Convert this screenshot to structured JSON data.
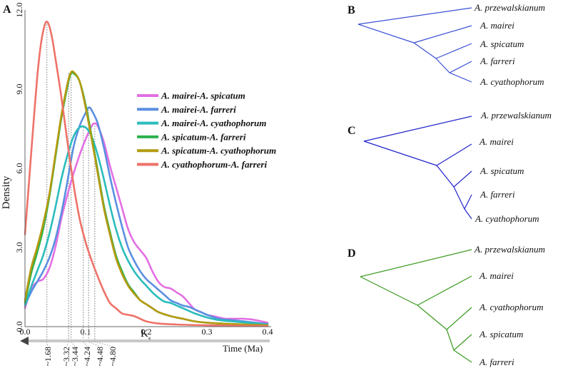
{
  "chart_data": {
    "type": "line",
    "panel_label": "A",
    "ylabel": "Density",
    "xlabel": "K",
    "xlabel_sub": "s",
    "secondary_axis_label": "Time (Ma)",
    "xlim": [
      0.0,
      0.4
    ],
    "ylim": [
      0.0,
      12.0
    ],
    "x_ticks": [
      {
        "v": 0.0,
        "t": "0.0"
      },
      {
        "v": 0.1,
        "t": "0.1"
      },
      {
        "v": 0.2,
        "t": "0.2"
      },
      {
        "v": 0.3,
        "t": "0.3"
      },
      {
        "v": 0.4,
        "t": "0.4"
      }
    ],
    "y_ticks": [
      {
        "v": 0.0,
        "t": "0.0"
      },
      {
        "v": 3.0,
        "t": "3.0"
      },
      {
        "v": 6.0,
        "t": "6.0"
      },
      {
        "v": 9.0,
        "t": "9.0"
      },
      {
        "v": 12.0,
        "t": "12.0"
      }
    ],
    "legend_position": "right",
    "series": [
      {
        "name": "A. mairei-A. spicatum",
        "color": "#e36fe3",
        "points": [
          [
            0,
            0.7
          ],
          [
            0.01,
            1.4
          ],
          [
            0.02,
            1.7
          ],
          [
            0.03,
            1.8
          ],
          [
            0.04,
            2.2
          ],
          [
            0.05,
            3.0
          ],
          [
            0.06,
            4.1
          ],
          [
            0.07,
            5.0
          ],
          [
            0.08,
            5.8
          ],
          [
            0.09,
            6.5
          ],
          [
            0.1,
            7.1
          ],
          [
            0.11,
            7.6
          ],
          [
            0.115,
            7.7
          ],
          [
            0.12,
            7.6
          ],
          [
            0.13,
            7.0
          ],
          [
            0.14,
            6.1
          ],
          [
            0.15,
            5.3
          ],
          [
            0.16,
            4.5
          ],
          [
            0.17,
            3.7
          ],
          [
            0.18,
            3.2
          ],
          [
            0.19,
            2.9
          ],
          [
            0.2,
            2.6
          ],
          [
            0.21,
            2.1
          ],
          [
            0.22,
            1.7
          ],
          [
            0.23,
            1.5
          ],
          [
            0.24,
            1.45
          ],
          [
            0.25,
            1.3
          ],
          [
            0.26,
            1.15
          ],
          [
            0.27,
            0.9
          ],
          [
            0.28,
            0.65
          ],
          [
            0.29,
            0.55
          ],
          [
            0.3,
            0.45
          ],
          [
            0.31,
            0.4
          ],
          [
            0.32,
            0.35
          ],
          [
            0.33,
            0.3
          ],
          [
            0.34,
            0.3
          ],
          [
            0.35,
            0.3
          ],
          [
            0.36,
            0.3
          ],
          [
            0.37,
            0.28
          ],
          [
            0.38,
            0.25
          ],
          [
            0.39,
            0.2
          ],
          [
            0.4,
            0.15
          ]
        ]
      },
      {
        "name": "A. mairei-A. farreri",
        "color": "#5b8fe0",
        "points": [
          [
            0,
            0.8
          ],
          [
            0.01,
            1.3
          ],
          [
            0.02,
            1.7
          ],
          [
            0.03,
            2.1
          ],
          [
            0.04,
            2.6
          ],
          [
            0.05,
            3.3
          ],
          [
            0.06,
            4.3
          ],
          [
            0.07,
            5.5
          ],
          [
            0.08,
            6.8
          ],
          [
            0.09,
            7.6
          ],
          [
            0.1,
            8.1
          ],
          [
            0.105,
            8.3
          ],
          [
            0.11,
            8.2
          ],
          [
            0.12,
            7.7
          ],
          [
            0.13,
            6.8
          ],
          [
            0.14,
            5.7
          ],
          [
            0.15,
            4.7
          ],
          [
            0.16,
            3.8
          ],
          [
            0.17,
            3.0
          ],
          [
            0.18,
            2.5
          ],
          [
            0.19,
            2.1
          ],
          [
            0.2,
            1.8
          ],
          [
            0.21,
            1.6
          ],
          [
            0.22,
            1.4
          ],
          [
            0.23,
            1.2
          ],
          [
            0.24,
            1.0
          ],
          [
            0.25,
            0.9
          ],
          [
            0.26,
            0.8
          ],
          [
            0.27,
            0.75
          ],
          [
            0.28,
            0.65
          ],
          [
            0.29,
            0.55
          ],
          [
            0.3,
            0.45
          ],
          [
            0.32,
            0.3
          ],
          [
            0.34,
            0.25
          ],
          [
            0.36,
            0.2
          ],
          [
            0.38,
            0.15
          ],
          [
            0.4,
            0.1
          ]
        ]
      },
      {
        "name": "A. mairei-A. cyathophorum",
        "color": "#2bbcbc",
        "points": [
          [
            0,
            0.8
          ],
          [
            0.01,
            1.5
          ],
          [
            0.02,
            2.1
          ],
          [
            0.03,
            2.7
          ],
          [
            0.04,
            3.5
          ],
          [
            0.05,
            4.5
          ],
          [
            0.06,
            5.6
          ],
          [
            0.07,
            6.5
          ],
          [
            0.08,
            7.2
          ],
          [
            0.09,
            7.55
          ],
          [
            0.1,
            7.55
          ],
          [
            0.11,
            7.2
          ],
          [
            0.12,
            6.5
          ],
          [
            0.13,
            5.6
          ],
          [
            0.14,
            4.6
          ],
          [
            0.15,
            3.7
          ],
          [
            0.16,
            3.0
          ],
          [
            0.17,
            2.5
          ],
          [
            0.18,
            2.1
          ],
          [
            0.19,
            1.8
          ],
          [
            0.2,
            1.55
          ],
          [
            0.21,
            1.3
          ],
          [
            0.22,
            1.1
          ],
          [
            0.23,
            0.95
          ],
          [
            0.24,
            0.9
          ],
          [
            0.25,
            0.8
          ],
          [
            0.26,
            0.7
          ],
          [
            0.27,
            0.6
          ],
          [
            0.28,
            0.5
          ],
          [
            0.3,
            0.35
          ],
          [
            0.32,
            0.25
          ],
          [
            0.35,
            0.18
          ],
          [
            0.38,
            0.12
          ],
          [
            0.4,
            0.08
          ]
        ]
      },
      {
        "name": "A. spicatum-A. farreri",
        "color": "#2bb24c",
        "points": [
          [
            0,
            0.9
          ],
          [
            0.01,
            2.0
          ],
          [
            0.02,
            2.8
          ],
          [
            0.03,
            3.7
          ],
          [
            0.04,
            4.9
          ],
          [
            0.05,
            6.4
          ],
          [
            0.06,
            7.9
          ],
          [
            0.07,
            9.1
          ],
          [
            0.075,
            9.55
          ],
          [
            0.08,
            9.6
          ],
          [
            0.09,
            9.3
          ],
          [
            0.1,
            8.4
          ],
          [
            0.11,
            7.2
          ],
          [
            0.12,
            5.9
          ],
          [
            0.13,
            4.6
          ],
          [
            0.14,
            3.6
          ],
          [
            0.15,
            2.7
          ],
          [
            0.16,
            2.1
          ],
          [
            0.17,
            1.6
          ],
          [
            0.18,
            1.3
          ],
          [
            0.19,
            1.0
          ],
          [
            0.2,
            0.85
          ],
          [
            0.21,
            0.7
          ],
          [
            0.22,
            0.55
          ],
          [
            0.24,
            0.4
          ],
          [
            0.26,
            0.3
          ],
          [
            0.28,
            0.2
          ],
          [
            0.3,
            0.15
          ],
          [
            0.34,
            0.1
          ],
          [
            0.4,
            0.05
          ]
        ]
      },
      {
        "name": "A. spicatum-A. cyathophorum",
        "color": "#b49a10",
        "points": [
          [
            0,
            1.0
          ],
          [
            0.01,
            2.2
          ],
          [
            0.02,
            3.0
          ],
          [
            0.03,
            3.9
          ],
          [
            0.04,
            5.0
          ],
          [
            0.05,
            6.5
          ],
          [
            0.06,
            8.0
          ],
          [
            0.07,
            9.2
          ],
          [
            0.075,
            9.6
          ],
          [
            0.08,
            9.65
          ],
          [
            0.09,
            9.3
          ],
          [
            0.1,
            8.3
          ],
          [
            0.11,
            7.1
          ],
          [
            0.12,
            5.8
          ],
          [
            0.13,
            4.5
          ],
          [
            0.14,
            3.5
          ],
          [
            0.15,
            2.6
          ],
          [
            0.16,
            2.0
          ],
          [
            0.17,
            1.55
          ],
          [
            0.18,
            1.25
          ],
          [
            0.19,
            1.0
          ],
          [
            0.2,
            0.85
          ],
          [
            0.21,
            0.7
          ],
          [
            0.22,
            0.55
          ],
          [
            0.24,
            0.4
          ],
          [
            0.26,
            0.3
          ],
          [
            0.28,
            0.2
          ],
          [
            0.3,
            0.15
          ],
          [
            0.34,
            0.1
          ],
          [
            0.4,
            0.05
          ]
        ]
      },
      {
        "name": "A. cyathophorum-A. farreri",
        "color": "#ee7268",
        "points": [
          [
            0,
            3.5
          ],
          [
            0.005,
            5.0
          ],
          [
            0.01,
            6.5
          ],
          [
            0.015,
            8.0
          ],
          [
            0.02,
            9.4
          ],
          [
            0.025,
            10.5
          ],
          [
            0.03,
            11.2
          ],
          [
            0.035,
            11.55
          ],
          [
            0.04,
            11.4
          ],
          [
            0.045,
            10.9
          ],
          [
            0.05,
            10.2
          ],
          [
            0.06,
            8.7
          ],
          [
            0.07,
            7.0
          ],
          [
            0.08,
            5.4
          ],
          [
            0.09,
            4.1
          ],
          [
            0.1,
            3.2
          ],
          [
            0.11,
            2.5
          ],
          [
            0.12,
            1.9
          ],
          [
            0.13,
            1.35
          ],
          [
            0.14,
            0.9
          ],
          [
            0.15,
            0.7
          ],
          [
            0.16,
            0.5
          ],
          [
            0.17,
            0.45
          ],
          [
            0.18,
            0.4
          ],
          [
            0.19,
            0.3
          ],
          [
            0.2,
            0.2
          ],
          [
            0.22,
            0.12
          ],
          [
            0.25,
            0.08
          ],
          [
            0.3,
            0.05
          ],
          [
            0.4,
            0.02
          ]
        ]
      }
    ],
    "peak_markers": [
      {
        "ks": 0.036,
        "density": 11.55,
        "label": "~1.68"
      },
      {
        "ks": 0.072,
        "density": 9.6,
        "label": "~3.32"
      },
      {
        "ks": 0.076,
        "density": 9.65,
        "label": "~3.44"
      },
      {
        "ks": 0.096,
        "density": 7.55,
        "label": "~4.24"
      },
      {
        "ks": 0.105,
        "density": 8.3,
        "label": "~4.48"
      },
      {
        "ks": 0.115,
        "density": 7.7,
        "label": "~4.80"
      }
    ]
  },
  "trees": [
    {
      "label": "B",
      "color": "#3a4fd6",
      "taxa": [
        "A. przewalskianum",
        "A. mairei",
        "A. spicatum",
        "A. farreri",
        "A. cyathophorum"
      ]
    },
    {
      "label": "C",
      "color": "#2222cc",
      "taxa": [
        "A. przewalskianum",
        "A. mairei",
        "A. spicatum",
        "A. farreri",
        "A. cyathophorum"
      ]
    },
    {
      "label": "D",
      "color": "#3a9a1e",
      "taxa": [
        "A. przewalskianum",
        "A. mairei",
        "A. cyathophorum",
        "A. spicatum",
        "A. farreri"
      ]
    }
  ]
}
